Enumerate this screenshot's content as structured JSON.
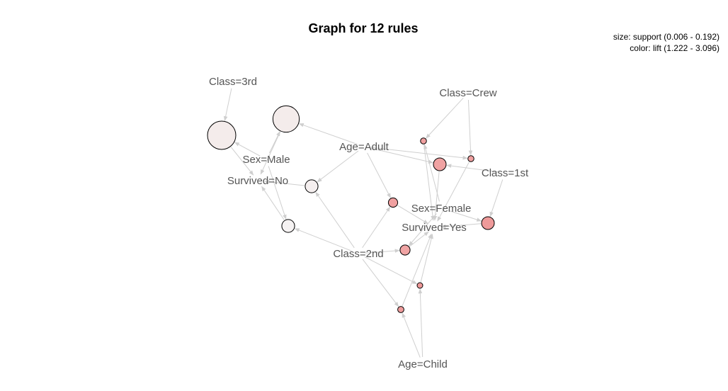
{
  "title": "Graph for 12 rules",
  "legend": {
    "size_line": "size: support (0.006 - 0.192)",
    "color_line": "color: lift (1.222 - 3.096)"
  },
  "colors": {
    "edge": "#cfcfcf",
    "label": "#555555",
    "rule_border": "#000000"
  },
  "items": [
    {
      "id": "class3rd",
      "label": "Class=3rd"
    },
    {
      "id": "classcrew",
      "label": "Class=Crew"
    },
    {
      "id": "sexmale",
      "label": "Sex=Male"
    },
    {
      "id": "ageadult",
      "label": "Age=Adult"
    },
    {
      "id": "class1st",
      "label": "Class=1st"
    },
    {
      "id": "survivedno",
      "label": "Survived=No"
    },
    {
      "id": "sexfemale",
      "label": "Sex=Female"
    },
    {
      "id": "survivedyes",
      "label": "Survived=Yes"
    },
    {
      "id": "class2nd",
      "label": "Class=2nd"
    },
    {
      "id": "agechild",
      "label": "Age=Child"
    }
  ],
  "rules": [
    {
      "id": "r1",
      "support": 0.192,
      "lift": 1.222,
      "color": "#f4eceb",
      "lhs": [
        "class3rd",
        "sexmale"
      ],
      "rhs": "survivedno"
    },
    {
      "id": "r2",
      "support": 0.176,
      "lift": 1.23,
      "color": "#f4eceb",
      "lhs": [
        "sexmale",
        "ageadult"
      ],
      "rhs": "survivedno"
    },
    {
      "id": "r3",
      "support": 0.065,
      "lift": 1.23,
      "color": "#f5efef",
      "lhs": [
        "ageadult",
        "class2nd"
      ],
      "rhs": "survivedno"
    },
    {
      "id": "r4",
      "support": 0.065,
      "lift": 1.25,
      "color": "#f5f2f2",
      "lhs": [
        "sexmale",
        "class2nd"
      ],
      "rhs": "survivedno"
    },
    {
      "id": "r5",
      "support": 0.009,
      "lift": 2.8,
      "color": "#f0a0a0",
      "lhs": [
        "classcrew",
        "sexfemale"
      ],
      "rhs": "survivedyes"
    },
    {
      "id": "r6",
      "support": 0.064,
      "lift": 2.7,
      "color": "#f0a2a2",
      "lhs": [
        "class1st",
        "ageadult"
      ],
      "rhs": "survivedyes"
    },
    {
      "id": "r7",
      "support": 0.009,
      "lift": 2.9,
      "color": "#f0a0a0",
      "lhs": [
        "classcrew",
        "ageadult"
      ],
      "rhs": "survivedyes"
    },
    {
      "id": "r8",
      "support": 0.064,
      "lift": 3.05,
      "color": "#ee9a9a",
      "lhs": [
        "class1st",
        "sexfemale"
      ],
      "rhs": "survivedyes"
    },
    {
      "id": "r9",
      "support": 0.036,
      "lift": 2.8,
      "color": "#f0a0a0",
      "lhs": [
        "ageadult",
        "class2nd"
      ],
      "rhs": "survivedyes"
    },
    {
      "id": "r10",
      "support": 0.042,
      "lift": 2.75,
      "color": "#f0a4a4",
      "lhs": [
        "class2nd",
        "sexfemale"
      ],
      "rhs": "survivedyes"
    },
    {
      "id": "r11",
      "support": 0.006,
      "lift": 3.096,
      "color": "#ee9898",
      "lhs": [
        "agechild",
        "class2nd"
      ],
      "rhs": "survivedyes"
    },
    {
      "id": "r12",
      "support": 0.011,
      "lift": 3.0,
      "color": "#ef9c9c",
      "lhs": [
        "agechild",
        "class2nd"
      ],
      "rhs": "survivedyes"
    }
  ]
}
